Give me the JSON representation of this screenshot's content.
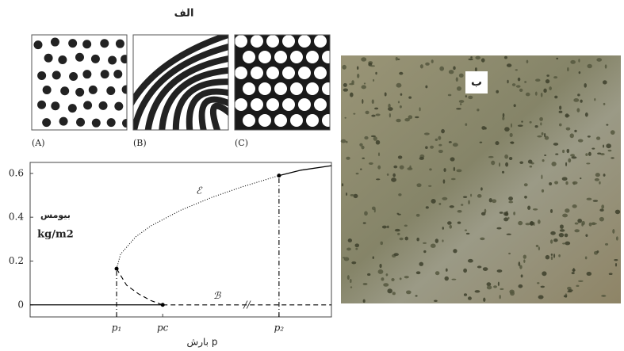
{
  "panel_a_label": "الف",
  "pattern_labels": [
    "(A)",
    "(B)",
    "(C)"
  ],
  "panel_b_label": "ب",
  "chart_data": {
    "type": "line",
    "y_label": [
      "بیومس",
      "kg/m2"
    ],
    "x_label": "بارش p",
    "xlim": [
      0,
      1
    ],
    "xticks": [
      {
        "value": 0.287,
        "label": "p₁"
      },
      {
        "value": 0.44,
        "label": "pc"
      },
      {
        "value": 0.826,
        "label": "p₂"
      }
    ],
    "ylim": [
      -0.055,
      0.65
    ],
    "yticks": [
      {
        "value": 0,
        "label": "0"
      },
      {
        "value": 0.2,
        "label": "0.2"
      },
      {
        "value": 0.4,
        "label": "0.4"
      },
      {
        "value": 0.6,
        "label": "0.6"
      }
    ],
    "series": [
      {
        "color": "#000000",
        "style": "dotted",
        "x": [
          0.287,
          0.3,
          0.35,
          0.4,
          0.5,
          0.6,
          0.7,
          0.826
        ],
        "values": [
          0.165,
          0.231,
          0.31,
          0.36,
          0.432,
          0.489,
          0.537,
          0.59
        ]
      },
      {
        "color": "#000000",
        "style": "solid",
        "x": [
          0.826,
          0.9,
          1.0
        ],
        "values": [
          0.59,
          0.615,
          0.635
        ]
      },
      {
        "color": "#000000",
        "style": "dashed",
        "x": [
          0.287,
          0.32,
          0.36,
          0.4,
          0.44
        ],
        "values": [
          0.165,
          0.09,
          0.05,
          0.02,
          0
        ]
      },
      {
        "color": "#000000",
        "style": "solid",
        "x": [
          0,
          0.44
        ],
        "values": [
          0,
          0
        ]
      },
      {
        "color": "#000000",
        "style": "dashed",
        "x": [
          0.44,
          1.0
        ],
        "values": [
          0,
          0
        ]
      },
      {
        "color": "#000000",
        "style": "dashdot",
        "x": [
          0.287,
          0.287
        ],
        "values": [
          -0.055,
          0.165
        ]
      },
      {
        "color": "#000000",
        "style": "dashdot",
        "x": [
          0.826,
          0.826
        ],
        "values": [
          -0.055,
          0.59
        ]
      },
      {
        "color": "#000000",
        "style": "points",
        "x": [
          0.287,
          0.44,
          0.826
        ],
        "values": [
          0.165,
          0,
          0.59
        ]
      }
    ],
    "annotations": [
      {
        "text": "ℰ",
        "x": 0.56,
        "y": 0.52
      },
      {
        "text": "ℬ",
        "x": 0.62,
        "y": 0.04
      },
      {
        "text": "//",
        "x": 0.72,
        "y": 0
      }
    ]
  }
}
